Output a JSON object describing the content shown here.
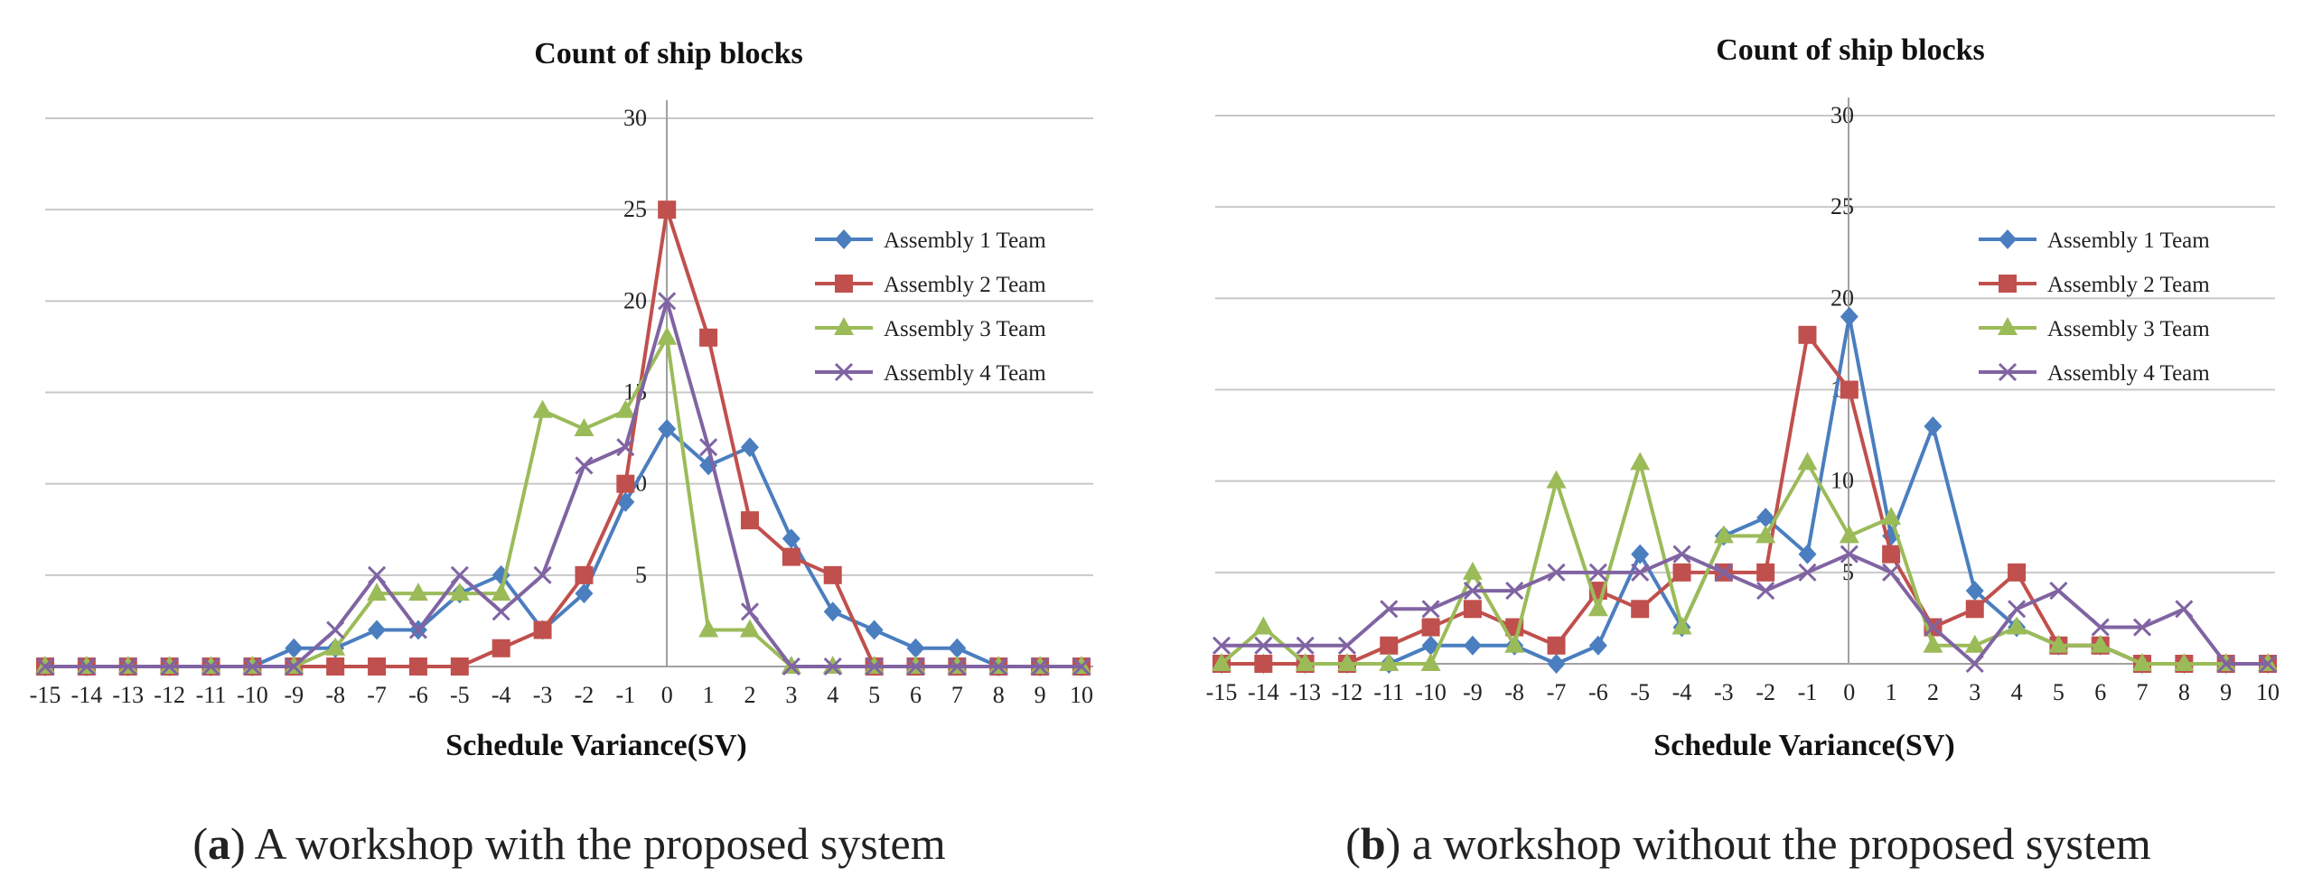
{
  "captions": [
    {
      "letter": "a",
      "text": ") A workshop with the proposed system"
    },
    {
      "letter": "b",
      "text": ") a workshop without the proposed system"
    }
  ],
  "colors": {
    "Assembly 1 Team": "#4a7ebf",
    "Assembly 2 Team": "#c0504d",
    "Assembly 3 Team": "#9bbb59",
    "Assembly 4 Team": "#8064a2"
  },
  "chart_data": [
    {
      "type": "line",
      "title": "Count of ship blocks",
      "xlabel": "Schedule Variance(SV)",
      "ylabel": "",
      "ylim": [
        0,
        30
      ],
      "yticks": [
        5,
        10,
        15,
        20,
        25,
        30
      ],
      "legend": "right",
      "x": [
        -15,
        -14,
        -13,
        -12,
        -11,
        -10,
        -9,
        -8,
        -7,
        -6,
        -5,
        -4,
        -3,
        -2,
        -1,
        0,
        1,
        2,
        3,
        4,
        5,
        6,
        7,
        8,
        9,
        10
      ],
      "series": [
        {
          "name": "Assembly 1 Team",
          "marker": "diamond",
          "values": [
            0,
            0,
            0,
            0,
            0,
            0,
            1,
            1,
            2,
            2,
            4,
            5,
            2,
            4,
            9,
            13,
            11,
            12,
            7,
            3,
            2,
            1,
            1,
            0,
            0,
            0
          ]
        },
        {
          "name": "Assembly 2 Team",
          "marker": "square",
          "values": [
            0,
            0,
            0,
            0,
            0,
            0,
            0,
            0,
            0,
            0,
            0,
            1,
            2,
            5,
            10,
            25,
            18,
            8,
            6,
            5,
            0,
            0,
            0,
            0,
            0,
            0
          ]
        },
        {
          "name": "Assembly 3 Team",
          "marker": "triangle",
          "values": [
            0,
            0,
            0,
            0,
            0,
            0,
            0,
            1,
            4,
            4,
            4,
            4,
            14,
            13,
            14,
            18,
            2,
            2,
            0,
            0,
            0,
            0,
            0,
            0,
            0,
            0
          ]
        },
        {
          "name": "Assembly 4 Team",
          "marker": "x",
          "values": [
            0,
            0,
            0,
            0,
            0,
            0,
            0,
            2,
            5,
            2,
            5,
            3,
            5,
            11,
            12,
            20,
            12,
            3,
            0,
            0,
            0,
            0,
            0,
            0,
            0,
            0
          ]
        }
      ]
    },
    {
      "type": "line",
      "title": "Count of ship blocks",
      "xlabel": "Schedule Variance(SV)",
      "ylabel": "",
      "ylim": [
        0,
        30
      ],
      "yticks": [
        5,
        10,
        15,
        20,
        25,
        30
      ],
      "legend": "right",
      "x": [
        -15,
        -14,
        -13,
        -12,
        -11,
        -10,
        -9,
        -8,
        -7,
        -6,
        -5,
        -4,
        -3,
        -2,
        -1,
        0,
        1,
        2,
        3,
        4,
        5,
        6,
        7,
        8,
        9,
        10
      ],
      "series": [
        {
          "name": "Assembly 1 Team",
          "marker": "diamond",
          "values": [
            0,
            0,
            0,
            0,
            0,
            1,
            1,
            1,
            0,
            1,
            6,
            2,
            7,
            8,
            6,
            19,
            7,
            13,
            4,
            2,
            1,
            1,
            0,
            0,
            0,
            0
          ]
        },
        {
          "name": "Assembly 2 Team",
          "marker": "square",
          "values": [
            0,
            0,
            0,
            0,
            1,
            2,
            3,
            2,
            1,
            4,
            3,
            5,
            5,
            5,
            18,
            15,
            6,
            2,
            3,
            5,
            1,
            1,
            0,
            0,
            0,
            0
          ]
        },
        {
          "name": "Assembly 3 Team",
          "marker": "triangle",
          "values": [
            0,
            2,
            0,
            0,
            0,
            0,
            5,
            1,
            10,
            3,
            11,
            2,
            7,
            7,
            11,
            7,
            8,
            1,
            1,
            2,
            1,
            1,
            0,
            0,
            0,
            0
          ]
        },
        {
          "name": "Assembly 4 Team",
          "marker": "x",
          "values": [
            1,
            1,
            1,
            1,
            3,
            3,
            4,
            4,
            5,
            5,
            5,
            6,
            5,
            4,
            5,
            6,
            5,
            2,
            0,
            3,
            4,
            2,
            2,
            3,
            0,
            0
          ]
        }
      ]
    }
  ]
}
